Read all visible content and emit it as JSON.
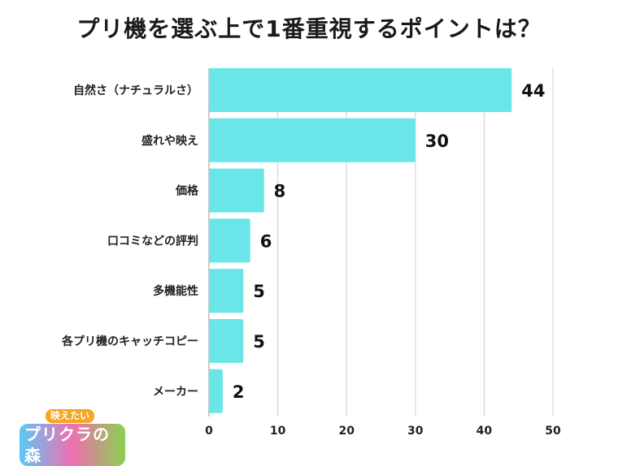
{
  "chart_data": {
    "type": "bar",
    "orientation": "horizontal",
    "title": "プリ機を選ぶ上で1番重視するポイントは？",
    "categories": [
      "自然さ（ナチュラルさ）",
      "盛れや映え",
      "価格",
      "口コミなどの評判",
      "多機能性",
      "各プリ機のキャッチコピー",
      "メーカー"
    ],
    "values": [
      44,
      30,
      8,
      6,
      5,
      5,
      2
    ],
    "xlim": [
      0,
      50
    ],
    "xticks": [
      0,
      10,
      20,
      30,
      40,
      50
    ],
    "grid": true,
    "bar_color": "#6ae6e8"
  },
  "logo": {
    "top_text": "映えたい",
    "main_text": "プリクラの森"
  }
}
